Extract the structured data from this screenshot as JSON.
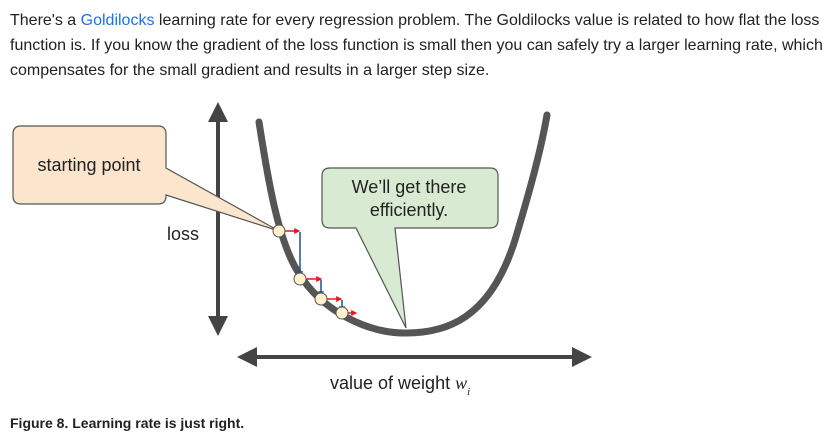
{
  "paragraph": {
    "text_before_link": "There's a ",
    "link_text": "Goldilocks",
    "text_after_link": " learning rate for every regression problem. The Goldilocks value is related to how flat the loss function is. If you know the gradient of the loss function is small then you can safely try a larger learning rate, which compensates for the small gradient and results in a larger step size."
  },
  "figure": {
    "callout_start": "starting point",
    "callout_efficient_line1": "We’ll get there",
    "callout_efficient_line2": "efficiently.",
    "y_axis_label": "loss",
    "x_axis_label": "value of weight ",
    "x_axis_var": "w",
    "x_axis_sub": "i",
    "colors": {
      "curve": "#555555",
      "axis": "#444444",
      "start_callout_fill": "#fce5cd",
      "efficient_callout_fill": "#d9ead3",
      "point_fill": "#fff2cc",
      "gradient_arrow": "#1f4e9c",
      "step_arrow": "#e01b1b",
      "link": "#1a73e8"
    }
  },
  "caption": "Figure 8. Learning rate is just right."
}
